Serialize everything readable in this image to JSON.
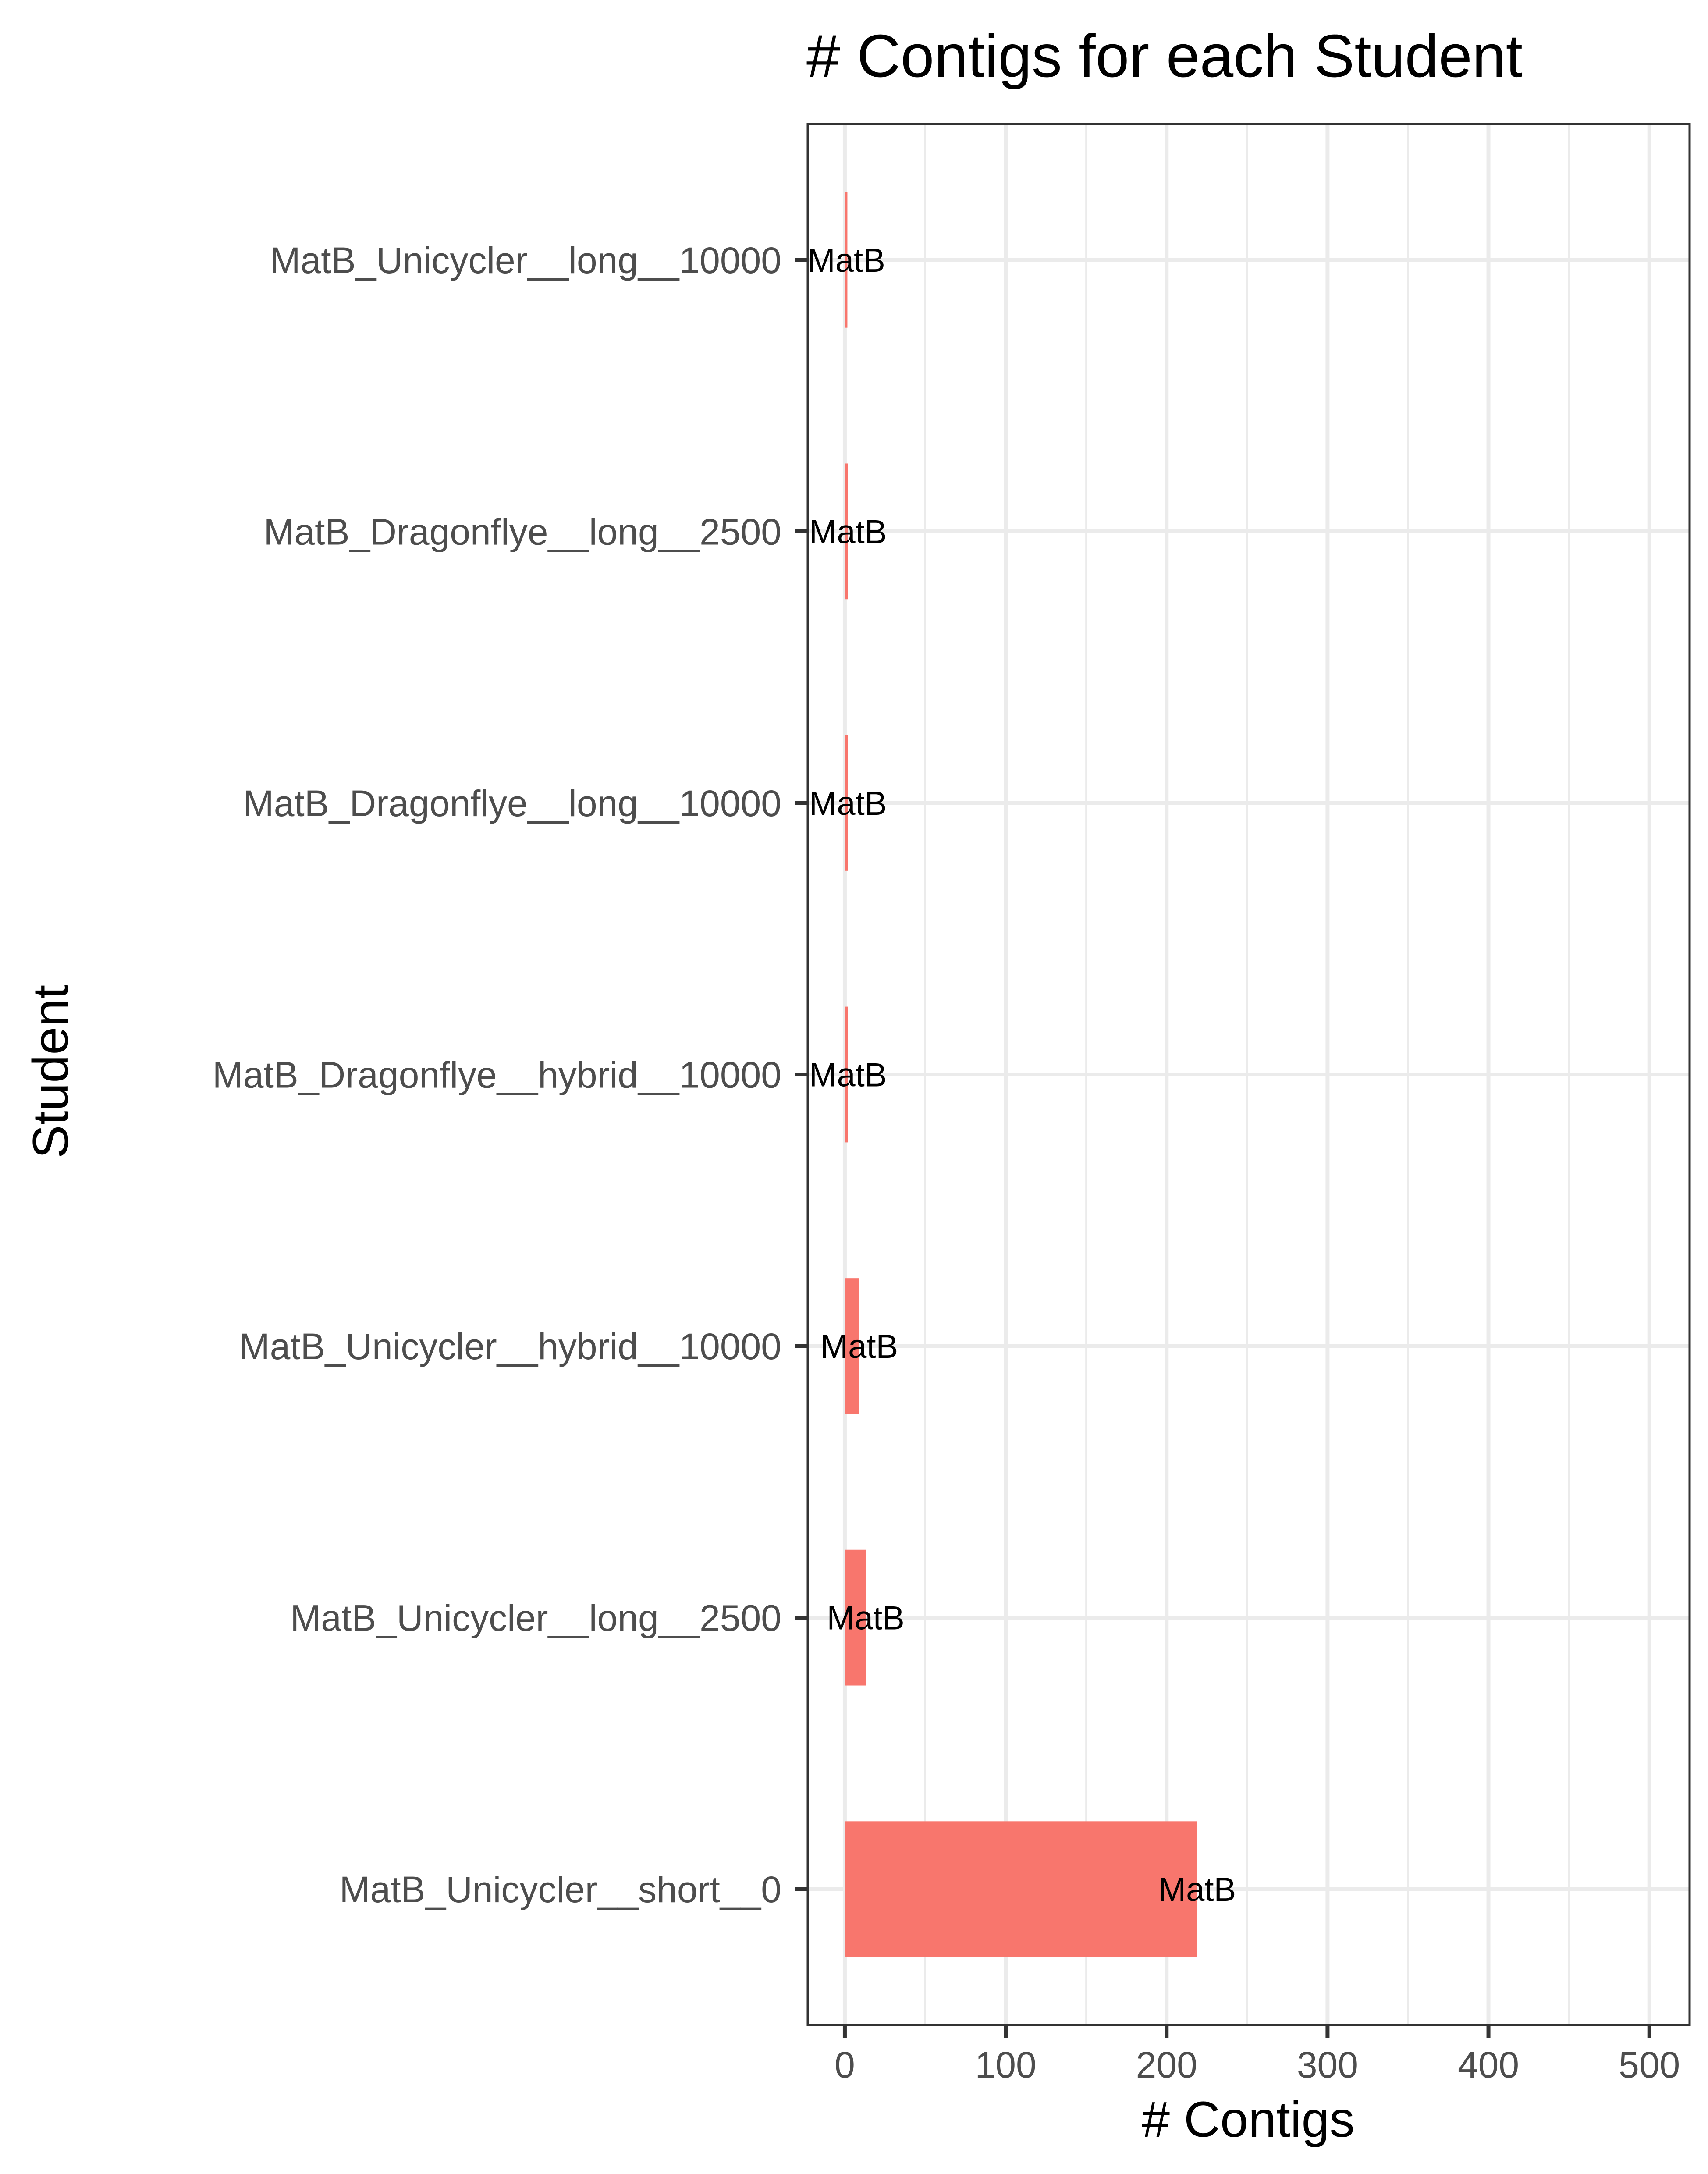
{
  "chart_data": {
    "type": "bar",
    "orientation": "horizontal",
    "title": "# Contigs for each Student",
    "xlabel": "# Contigs",
    "ylabel": "Student",
    "categories": [
      "MatB_Unicycler__long__10000",
      "MatB_Dragonflye__long__2500",
      "MatB_Dragonflye__long__10000",
      "MatB_Dragonflye__hybrid__10000",
      "MatB_Unicycler__hybrid__10000",
      "MatB_Unicycler__long__2500",
      "MatB_Unicycler__short__0"
    ],
    "values": [
      1,
      2,
      2,
      2,
      9,
      13,
      219
    ],
    "data_labels": [
      "MatB",
      "MatB",
      "MatB",
      "MatB",
      "MatB",
      "MatB",
      "MatB"
    ],
    "xlim": [
      -23,
      525
    ],
    "xticks": [
      0,
      100,
      200,
      300,
      400,
      500
    ],
    "xtick_labels": [
      "0",
      "100",
      "200",
      "300",
      "400",
      "500"
    ],
    "grid": true,
    "legend": "none",
    "colors": {
      "bar": "#F8766D",
      "grid": "#EBEBEB",
      "panel_border": "#333333",
      "tick_text": "#4D4D4D",
      "background": "#FFFFFF"
    }
  }
}
